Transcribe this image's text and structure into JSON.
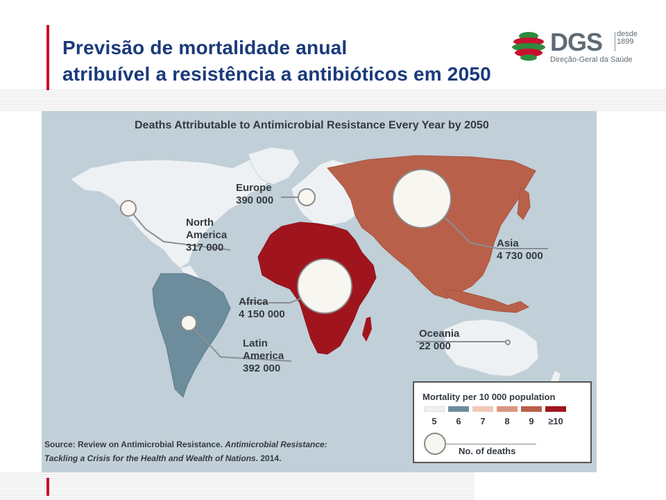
{
  "slide": {
    "title_line1": "Previsão de mortalidade anual",
    "title_line2": "atribuível a resistência a antibióticos em 2050"
  },
  "logo": {
    "name": "DGS",
    "since_line1": "desde",
    "since_line2": "1899",
    "subtitle": "Direção-Geral da Saúde",
    "colors": [
      "#c8102e",
      "#2e8b3e"
    ]
  },
  "map": {
    "title": "Deaths Attributable to Antimicrobial Resistance Every Year by 2050",
    "regions": [
      {
        "name": "Europe",
        "deaths": "390 000",
        "mortality_class": "5",
        "color": "#eef1f3"
      },
      {
        "name_line1": "North",
        "name_line2": "America",
        "deaths": "317 000",
        "mortality_class": "5",
        "color": "#eef1f3"
      },
      {
        "name": "Asia",
        "deaths": "4 730 000",
        "mortality_class": "9",
        "color": "#b9604a"
      },
      {
        "name": "Africa",
        "deaths": "4 150 000",
        "mortality_class": "≥10",
        "color": "#a0151d"
      },
      {
        "name_line1": "Latin",
        "name_line2": "America",
        "deaths": "392 000",
        "mortality_class": "6",
        "color": "#6d8d9c"
      },
      {
        "name": "Oceania",
        "deaths": "22 000",
        "mortality_class": "5",
        "color": "#eef1f3"
      }
    ],
    "legend": {
      "title": "Mortality per 10 000 population",
      "classes": [
        {
          "label": "5",
          "color": "#eef1f3"
        },
        {
          "label": "6",
          "color": "#6d8d9c"
        },
        {
          "label": "7",
          "color": "#f1c9b8"
        },
        {
          "label": "8",
          "color": "#d99580"
        },
        {
          "label": "9",
          "color": "#b9604a"
        },
        {
          "label": "≥10",
          "color": "#a0151d"
        }
      ],
      "circle_label": "No. of deaths"
    },
    "source_prefix": "Source: Review on Antimicrobial Resistance. ",
    "source_title_part1": "Antimicrobial Resistance:",
    "source_title_part2": "Tackling a Crisis for the Health and Wealth of Nations",
    "source_suffix": ". 2014."
  }
}
